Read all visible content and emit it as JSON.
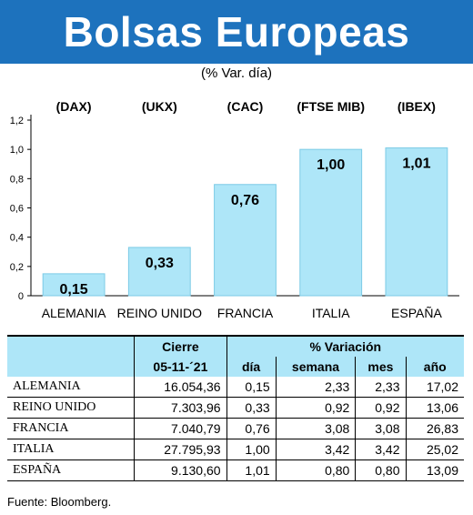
{
  "title": "Bolsas Europeas",
  "subtitle": "(% Var. día)",
  "chart_data": {
    "type": "bar",
    "series_codes": [
      "(DAX)",
      "(UKX)",
      "(CAC)",
      "(FTSE MIB)",
      "(IBEX)"
    ],
    "categories": [
      "ALEMANIA",
      "REINO UNIDO",
      "FRANCIA",
      "ITALIA",
      "ESPAÑA"
    ],
    "values": [
      0.15,
      0.33,
      0.76,
      1.0,
      1.01
    ],
    "value_labels": [
      "0,15",
      "0,33",
      "0,76",
      "1,00",
      "1,01"
    ],
    "yticks": [
      "0",
      "0,2",
      "0,4",
      "0,6",
      "0,8",
      "1,0",
      "1,2"
    ],
    "ylim": [
      0,
      1.2
    ],
    "grid": false,
    "bar_color": "#aee6f8",
    "bar_edge": "#7ccbe6"
  },
  "table": {
    "cierre_header": "Cierre",
    "variacion_header": "% Variación",
    "date": "05-11-´21",
    "cols": [
      "día",
      "semana",
      "mes",
      "año"
    ],
    "rows": [
      {
        "name": "ALEMANIA",
        "cierre": "16.054,36",
        "dia": "0,15",
        "semana": "2,33",
        "mes": "2,33",
        "ano": "17,02"
      },
      {
        "name": "REINO UNIDO",
        "cierre": "7.303,96",
        "dia": "0,33",
        "semana": "0,92",
        "mes": "0,92",
        "ano": "13,06"
      },
      {
        "name": "FRANCIA",
        "cierre": "7.040,79",
        "dia": "0,76",
        "semana": "3,08",
        "mes": "3,08",
        "ano": "26,83"
      },
      {
        "name": "ITALIA",
        "cierre": "27.795,93",
        "dia": "1,00",
        "semana": "3,42",
        "mes": "3,42",
        "ano": "25,02"
      },
      {
        "name": "ESPAÑA",
        "cierre": "9.130,60",
        "dia": "1,01",
        "semana": "0,80",
        "mes": "0,80",
        "ano": "13,09"
      }
    ]
  },
  "source": "Fuente: Bloomberg.",
  "colors": {
    "title_bg": "#1d72bd",
    "table_header_bg": "#aee6f8"
  }
}
